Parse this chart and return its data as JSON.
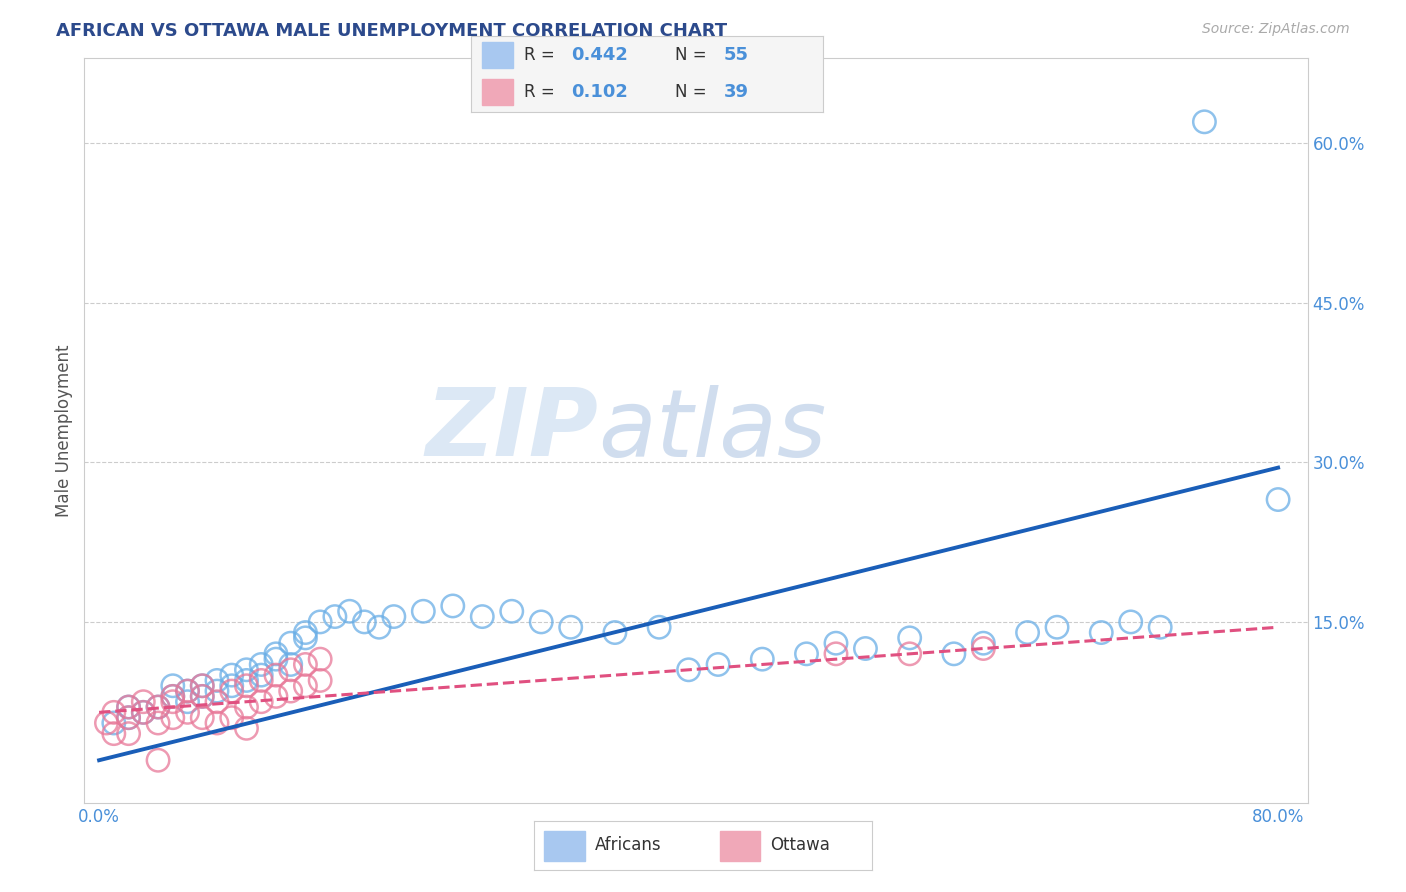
{
  "title": "AFRICAN VS OTTAWA MALE UNEMPLOYMENT CORRELATION CHART",
  "source_text": "Source: ZipAtlas.com",
  "ylabel": "Male Unemployment",
  "xlim": [
    -0.01,
    0.82
  ],
  "ylim": [
    -0.02,
    0.68
  ],
  "xtick_positions": [
    0.0,
    0.8
  ],
  "xtick_labels": [
    "0.0%",
    "80.0%"
  ],
  "ytick_positions": [
    0.15,
    0.3,
    0.45,
    0.6
  ],
  "ytick_labels": [
    "15.0%",
    "30.0%",
    "45.0%",
    "60.0%"
  ],
  "background_color": "#ffffff",
  "grid_color": "#cccccc",
  "africans_color": "#6aaee6",
  "ottawa_color": "#e87898",
  "title_color": "#2c4a8c",
  "axis_label_color": "#555555",
  "tick_label_color": "#4a90d9",
  "africans_scatter_x": [
    0.01,
    0.02,
    0.02,
    0.03,
    0.04,
    0.05,
    0.05,
    0.06,
    0.06,
    0.07,
    0.07,
    0.08,
    0.08,
    0.09,
    0.09,
    0.1,
    0.1,
    0.11,
    0.11,
    0.12,
    0.12,
    0.13,
    0.13,
    0.14,
    0.14,
    0.15,
    0.16,
    0.17,
    0.18,
    0.19,
    0.2,
    0.22,
    0.24,
    0.26,
    0.28,
    0.3,
    0.32,
    0.35,
    0.38,
    0.4,
    0.42,
    0.45,
    0.48,
    0.5,
    0.52,
    0.55,
    0.58,
    0.6,
    0.63,
    0.65,
    0.68,
    0.7,
    0.72,
    0.75,
    0.8
  ],
  "africans_scatter_y": [
    0.055,
    0.06,
    0.07,
    0.065,
    0.07,
    0.08,
    0.09,
    0.075,
    0.085,
    0.08,
    0.09,
    0.085,
    0.095,
    0.09,
    0.1,
    0.095,
    0.105,
    0.1,
    0.11,
    0.115,
    0.12,
    0.11,
    0.13,
    0.135,
    0.14,
    0.15,
    0.155,
    0.16,
    0.15,
    0.145,
    0.155,
    0.16,
    0.165,
    0.155,
    0.16,
    0.15,
    0.145,
    0.14,
    0.145,
    0.105,
    0.11,
    0.115,
    0.12,
    0.13,
    0.125,
    0.135,
    0.12,
    0.13,
    0.14,
    0.145,
    0.14,
    0.15,
    0.145,
    0.62,
    0.265
  ],
  "ottawa_scatter_x": [
    0.005,
    0.01,
    0.01,
    0.02,
    0.02,
    0.02,
    0.03,
    0.03,
    0.04,
    0.04,
    0.05,
    0.05,
    0.05,
    0.06,
    0.06,
    0.07,
    0.07,
    0.07,
    0.08,
    0.08,
    0.09,
    0.09,
    0.1,
    0.1,
    0.1,
    0.11,
    0.11,
    0.12,
    0.12,
    0.13,
    0.13,
    0.14,
    0.14,
    0.15,
    0.15,
    0.04,
    0.5,
    0.55,
    0.6
  ],
  "ottawa_scatter_y": [
    0.055,
    0.065,
    0.045,
    0.06,
    0.07,
    0.045,
    0.065,
    0.075,
    0.07,
    0.055,
    0.075,
    0.06,
    0.08,
    0.065,
    0.085,
    0.08,
    0.06,
    0.09,
    0.075,
    0.055,
    0.085,
    0.06,
    0.09,
    0.07,
    0.05,
    0.095,
    0.075,
    0.1,
    0.08,
    0.105,
    0.085,
    0.11,
    0.09,
    0.115,
    0.095,
    0.02,
    0.12,
    0.12,
    0.125
  ],
  "africans_line_color": "#1a5eb8",
  "ottawa_line_color": "#e05080",
  "africans_line_start_y": 0.02,
  "africans_line_end_y": 0.295,
  "ottawa_line_start_y": 0.065,
  "ottawa_line_end_y": 0.145
}
